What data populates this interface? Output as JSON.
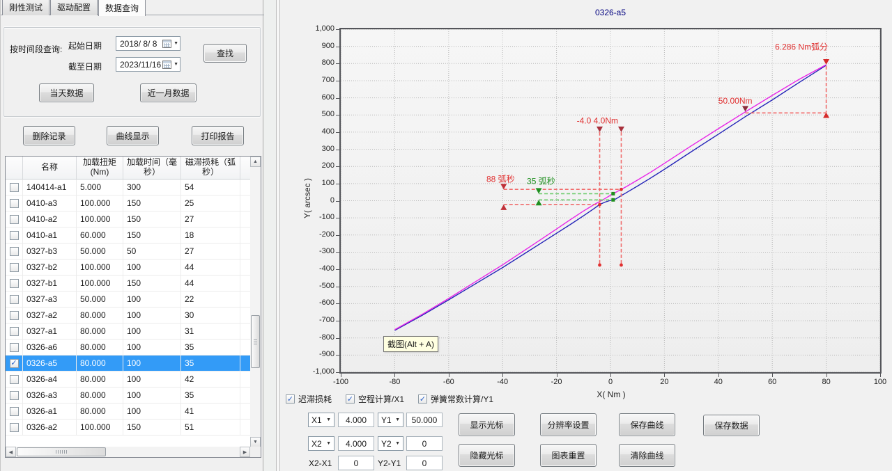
{
  "tabs": [
    {
      "label": "刚性测试",
      "active": false
    },
    {
      "label": "驱动配置",
      "active": false
    },
    {
      "label": "数据查询",
      "active": true
    }
  ],
  "query": {
    "section_label": "按时间段查询:",
    "start_label": "起始日期",
    "start_value": "2018/ 8/ 8",
    "end_label": "截至日期",
    "end_value": "2023/11/16",
    "search_button": "查找",
    "today_button": "当天数据",
    "month_button": "近一月数据"
  },
  "actions": {
    "delete": "删除记录",
    "curve": "曲线显示",
    "print": "打印报告"
  },
  "table": {
    "headers": [
      "名称",
      "加载扭矩(Nm)",
      "加载时间（毫秒）",
      "磁滞损耗（弧秒）"
    ],
    "rows": [
      {
        "name": "140414-a1",
        "torque": "5.000",
        "time": "300",
        "loss": "54",
        "checked": false,
        "selected": false
      },
      {
        "name": "0410-a3",
        "torque": "100.000",
        "time": "150",
        "loss": "25",
        "checked": false,
        "selected": false
      },
      {
        "name": "0410-a2",
        "torque": "100.000",
        "time": "150",
        "loss": "27",
        "checked": false,
        "selected": false
      },
      {
        "name": "0410-a1",
        "torque": "60.000",
        "time": "150",
        "loss": "18",
        "checked": false,
        "selected": false
      },
      {
        "name": "0327-b3",
        "torque": "50.000",
        "time": "50",
        "loss": "27",
        "checked": false,
        "selected": false
      },
      {
        "name": "0327-b2",
        "torque": "100.000",
        "time": "100",
        "loss": "44",
        "checked": false,
        "selected": false
      },
      {
        "name": "0327-b1",
        "torque": "100.000",
        "time": "150",
        "loss": "44",
        "checked": false,
        "selected": false
      },
      {
        "name": "0327-a3",
        "torque": "50.000",
        "time": "100",
        "loss": "22",
        "checked": false,
        "selected": false
      },
      {
        "name": "0327-a2",
        "torque": "80.000",
        "time": "100",
        "loss": "30",
        "checked": false,
        "selected": false
      },
      {
        "name": "0327-a1",
        "torque": "80.000",
        "time": "100",
        "loss": "31",
        "checked": false,
        "selected": false
      },
      {
        "name": "0326-a6",
        "torque": "80.000",
        "time": "100",
        "loss": "35",
        "checked": false,
        "selected": false
      },
      {
        "name": "0326-a5",
        "torque": "80.000",
        "time": "100",
        "loss": "35",
        "checked": true,
        "selected": true
      },
      {
        "name": "0326-a4",
        "torque": "80.000",
        "time": "100",
        "loss": "42",
        "checked": false,
        "selected": false
      },
      {
        "name": "0326-a3",
        "torque": "80.000",
        "time": "100",
        "loss": "35",
        "checked": false,
        "selected": false
      },
      {
        "name": "0326-a1",
        "torque": "80.000",
        "time": "100",
        "loss": "41",
        "checked": false,
        "selected": false
      },
      {
        "name": "0326-a2",
        "torque": "100.000",
        "time": "150",
        "loss": "51",
        "checked": false,
        "selected": false
      }
    ]
  },
  "chart_data": {
    "type": "line",
    "title": "0326-a5",
    "xlabel": "X( Nm )",
    "ylabel": "Y( arcsec )",
    "xlim": [
      -100,
      100
    ],
    "ylim": [
      -1000,
      1000
    ],
    "grid": true,
    "legend": "none",
    "xticks": [
      -100,
      -80,
      -60,
      -40,
      -20,
      0,
      20,
      40,
      60,
      80,
      100
    ],
    "xtick_labels": [
      "-100",
      "-80",
      "-60",
      "-40",
      "-20",
      "0",
      "20",
      "40",
      "60",
      "80",
      "100"
    ],
    "yticks": [
      1000,
      900,
      800,
      700,
      600,
      500,
      400,
      300,
      200,
      100,
      0,
      -100,
      -200,
      -300,
      -400,
      -500,
      -600,
      -700,
      -800,
      -900,
      -1000
    ],
    "ytick_labels": [
      "1,000",
      "900",
      "800",
      "700",
      "600",
      "500",
      "400",
      "300",
      "200",
      "100",
      "0",
      "-100",
      "-200",
      "-300",
      "-400",
      "-500",
      "-600",
      "-700",
      "-800",
      "-900",
      "-1,000"
    ],
    "series": [
      {
        "name": "curve-upper-magenta",
        "color": "#e823e8",
        "points": [
          [
            -80,
            -752
          ],
          [
            -70,
            -664
          ],
          [
            -60,
            -570
          ],
          [
            -50,
            -472
          ],
          [
            -40,
            -374
          ],
          [
            -30,
            -270
          ],
          [
            -20,
            -165
          ],
          [
            -15,
            -112
          ],
          [
            -10,
            -60
          ],
          [
            -6,
            -22
          ],
          [
            -4,
            -5
          ],
          [
            -2,
            13
          ],
          [
            0,
            32
          ],
          [
            1,
            41
          ],
          [
            2,
            49
          ],
          [
            4,
            66
          ],
          [
            6,
            83
          ],
          [
            10,
            120
          ],
          [
            15,
            167
          ],
          [
            20,
            218
          ],
          [
            30,
            320
          ],
          [
            40,
            420
          ],
          [
            50,
            518
          ],
          [
            60,
            614
          ],
          [
            70,
            708
          ],
          [
            80,
            793
          ]
        ]
      },
      {
        "name": "curve-lower-blue",
        "color": "#2424b8",
        "points": [
          [
            -80,
            -756
          ],
          [
            -70,
            -670
          ],
          [
            -60,
            -578
          ],
          [
            -50,
            -484
          ],
          [
            -40,
            -390
          ],
          [
            -30,
            -290
          ],
          [
            -20,
            -190
          ],
          [
            -15,
            -140
          ],
          [
            -10,
            -88
          ],
          [
            -6,
            -45
          ],
          [
            -4,
            -22
          ],
          [
            -2,
            -8
          ],
          [
            0,
            2
          ],
          [
            1,
            5
          ],
          [
            2,
            10
          ],
          [
            4,
            30
          ],
          [
            6,
            48
          ],
          [
            10,
            85
          ],
          [
            15,
            133
          ],
          [
            20,
            183
          ],
          [
            30,
            286
          ],
          [
            40,
            388
          ],
          [
            50,
            490
          ],
          [
            60,
            588
          ],
          [
            70,
            690
          ],
          [
            80,
            790
          ]
        ]
      }
    ],
    "annotations": [
      {
        "id": "spring-constant-marker",
        "line_color": "#f06a6a",
        "mark_color": "#d62b2b",
        "text_color": "#e03030",
        "text": "6.286 Nm弧分",
        "text_pos": [
          61,
          880
        ],
        "vdash": [
          [
            80,
            785,
            515
          ]
        ],
        "tri_down": [
          [
            80,
            793
          ]
        ],
        "tri_up": [
          [
            80,
            515
          ]
        ]
      },
      {
        "id": "load-50nm-marker",
        "line_color": "#f06a6a",
        "mark_color": "#8b2e3c",
        "text_color": "#e03030",
        "text": "50.00Nm",
        "text_pos": [
          40,
          565
        ],
        "hdash": [
          [
            512,
            50,
            80
          ]
        ],
        "tri_down": [
          [
            50,
            520
          ]
        ]
      },
      {
        "id": "plus-minus-4nm-cursors",
        "line_color": "#f06a6a",
        "mark_color": "#a8303c",
        "text_color": "#e03030",
        "text": "-4.0 4.0Nm",
        "text_pos": [
          -12.5,
          450
        ],
        "vdash": [
          [
            -4,
            400,
            -375
          ],
          [
            4,
            400,
            -375
          ]
        ],
        "tri_down": [
          [
            -4,
            400
          ],
          [
            4,
            400
          ]
        ],
        "dot": [
          [
            -4,
            -375
          ],
          [
            4,
            -375
          ]
        ]
      },
      {
        "id": "hysteresis-88-arcsec",
        "line_color": "#f06a6a",
        "mark_color": "#c03038",
        "text_color": "#e03030",
        "text": "88 弧秒",
        "text_pos": [
          -46,
          110
        ],
        "hdash": [
          [
            66,
            -39.6,
            4
          ],
          [
            -22,
            -39.6,
            -4
          ]
        ],
        "tri_down": [
          [
            -39.6,
            66
          ]
        ],
        "tri_up": [
          [
            -39.6,
            -22
          ]
        ],
        "dot": [
          [
            4,
            66
          ],
          [
            -4,
            -22
          ]
        ]
      },
      {
        "id": "backlash-35-arcsec",
        "line_color": "#6ecc6e",
        "mark_color": "#1f8f1f",
        "text_color": "#1f8f1f",
        "text": "35 弧秒",
        "text_pos": [
          -31,
          98
        ],
        "hdash": [
          [
            41,
            -26.6,
            1
          ],
          [
            5,
            -26.6,
            1
          ]
        ],
        "tri_down": [
          [
            -26.6,
            41
          ]
        ],
        "tri_up": [
          [
            -26.6,
            5
          ]
        ],
        "square": [
          [
            1,
            41
          ],
          [
            1,
            5
          ]
        ]
      }
    ],
    "tooltip": "截图(Alt + A)"
  },
  "chart_controls": {
    "checkboxes": [
      {
        "label": "迟滞损耗",
        "checked": true
      },
      {
        "label": "空程计算/X1",
        "checked": true
      },
      {
        "label": "弹簧常数计算/Y1",
        "checked": true
      }
    ],
    "cursor_rows": [
      {
        "combo": "X1",
        "value": "4.000",
        "combo2": "Y1",
        "value2": "50.000"
      },
      {
        "combo": "X2",
        "value": "4.000",
        "combo2": "Y2",
        "value2": "0"
      },
      {
        "label": "X2-X1",
        "value": "0",
        "label2": "Y2-Y1",
        "value2": "0"
      }
    ],
    "buttons": [
      "显示光标",
      "隐藏光标",
      "分辨率设置",
      "图表重置",
      "保存曲线",
      "清除曲线",
      "保存数据"
    ]
  }
}
